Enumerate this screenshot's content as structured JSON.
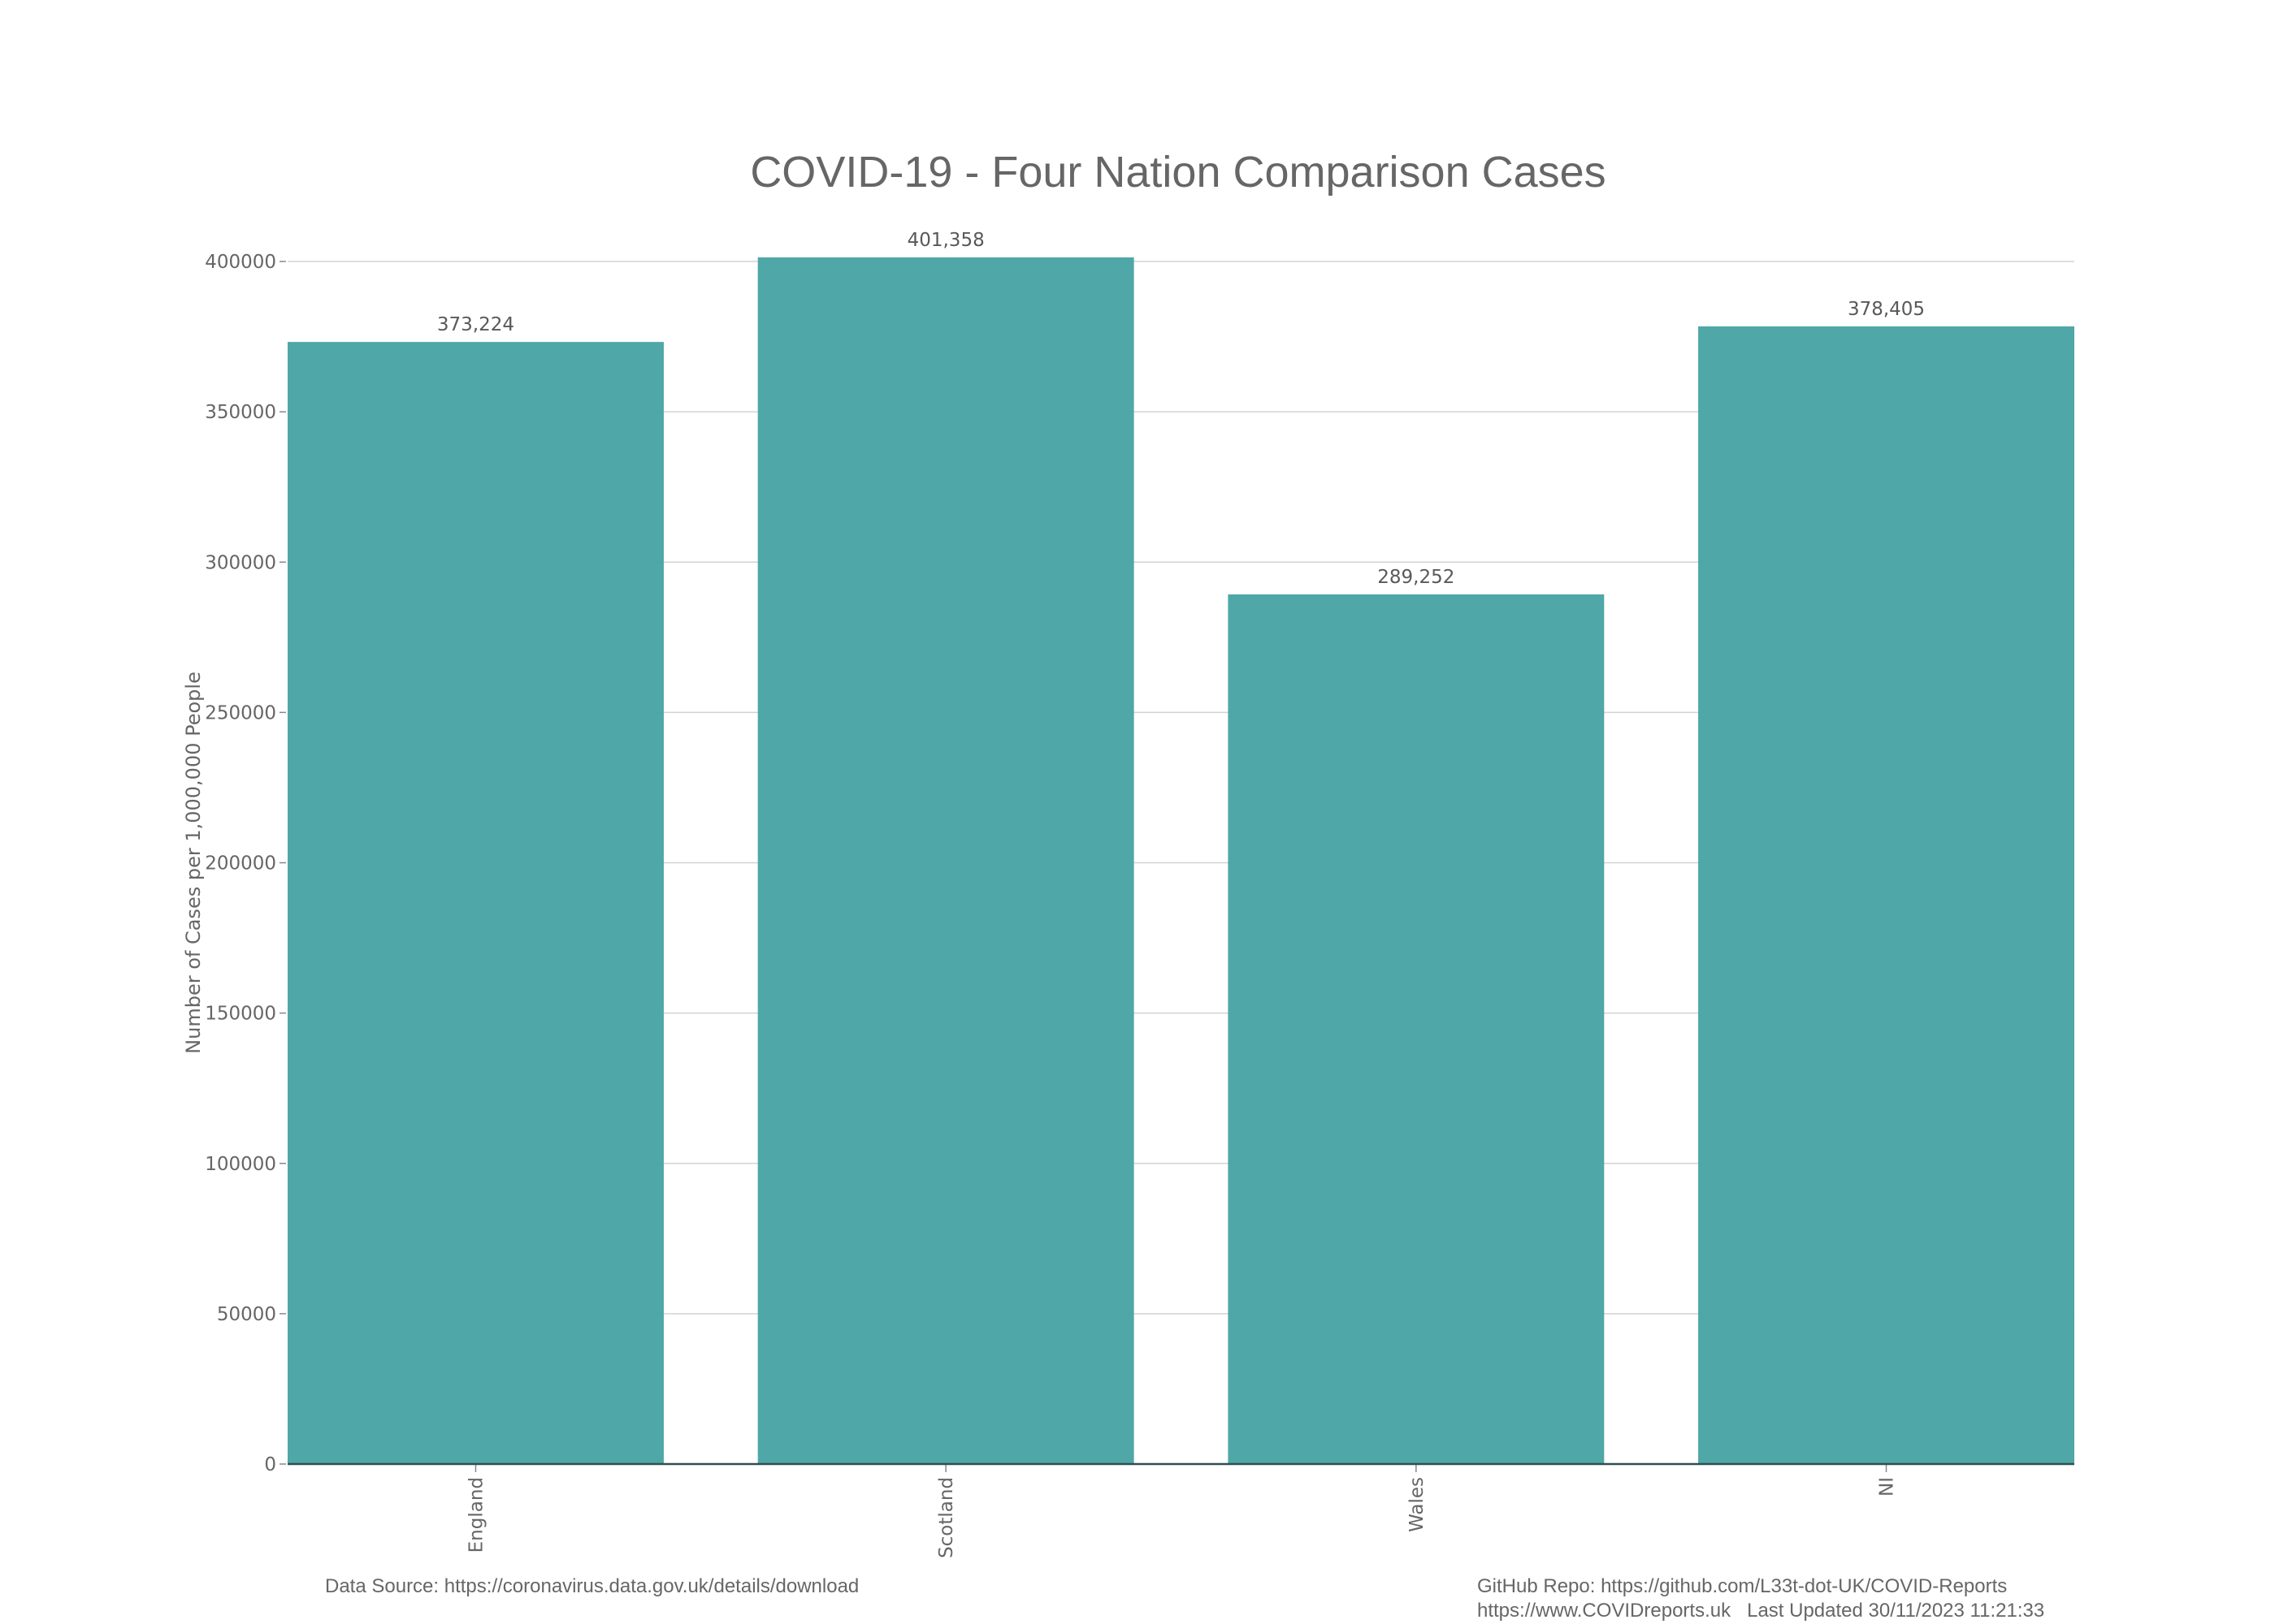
{
  "chart_data": {
    "type": "bar",
    "title": "COVID-19 - Four Nation Comparison Cases",
    "xlabel": "",
    "ylabel": "Number of Cases per 1,000,000 People",
    "categories": [
      "England",
      "Scotland",
      "Wales",
      "NI"
    ],
    "values": [
      373224,
      401358,
      289252,
      378405
    ],
    "value_labels": [
      "373,224",
      "401,358",
      "289,252",
      "378,405"
    ],
    "ylim": [
      0,
      400000
    ],
    "yticks": [
      0,
      50000,
      100000,
      150000,
      200000,
      250000,
      300000,
      350000,
      400000
    ],
    "ytick_labels": [
      "0",
      "50000",
      "100000",
      "150000",
      "200000",
      "250000",
      "300000",
      "350000",
      "400000"
    ],
    "grid": true,
    "bar_color": "#4BA5A5",
    "x_tick_rotation": "vertical"
  },
  "footer": {
    "data_source": "Data Source: https://coronavirus.data.gov.uk/details/download",
    "github_repo": "GitHub Repo: https://github.com/L33t-dot-UK/COVID-Reports",
    "website_updated": "https://www.COVIDreports.uk   Last Updated 30/11/2023 11:21:33"
  }
}
